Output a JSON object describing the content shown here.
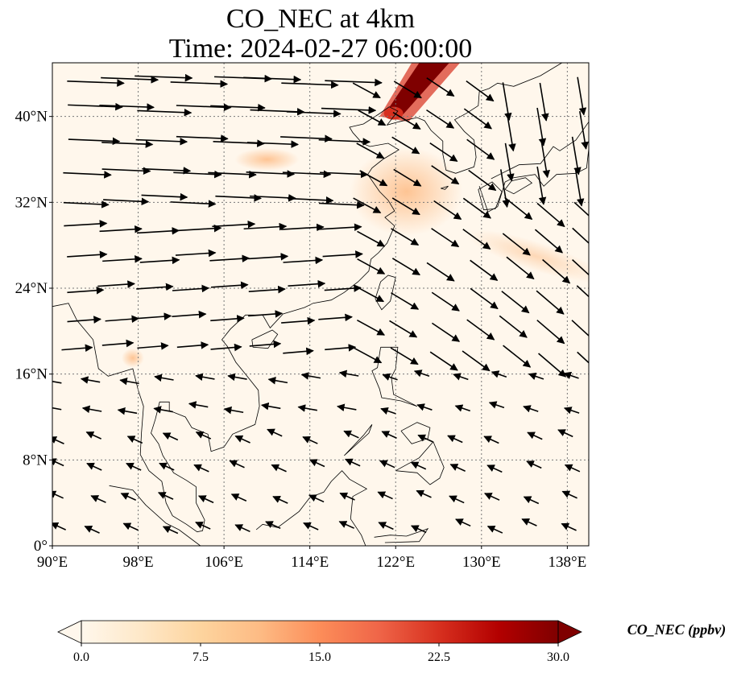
{
  "title": {
    "line1": "CO_NEC at 4km",
    "line2": "Time: 2024-02-27 06:00:00"
  },
  "map": {
    "lon_range": [
      90,
      140
    ],
    "lat_range": [
      0,
      45
    ],
    "lon_ticks": [
      {
        "value": 90,
        "label": "90°E"
      },
      {
        "value": 98,
        "label": "98°E"
      },
      {
        "value": 106,
        "label": "106°E"
      },
      {
        "value": 114,
        "label": "114°E"
      },
      {
        "value": 122,
        "label": "122°E"
      },
      {
        "value": 130,
        "label": "130°E"
      },
      {
        "value": 138,
        "label": "138°E"
      }
    ],
    "lat_ticks": [
      {
        "value": 0,
        "label": "0°"
      },
      {
        "value": 8,
        "label": "8°N"
      },
      {
        "value": 16,
        "label": "16°N"
      },
      {
        "value": 24,
        "label": "24°N"
      },
      {
        "value": 32,
        "label": "32°N"
      },
      {
        "value": 40,
        "label": "40°N"
      }
    ],
    "gridlines": true,
    "background_color": "#fff7ec",
    "coast_color": "#000000",
    "plume_colors": {
      "high": "#7f0000",
      "mid": "#d7301f",
      "low": "#fdbb84",
      "faint": "#fdd49e"
    },
    "arrow_color": "#000000"
  },
  "colorbar": {
    "min": 0,
    "max": 30,
    "extend": "both",
    "ticks": [
      {
        "value": 0,
        "label": "0.0"
      },
      {
        "value": 7.5,
        "label": "7.5"
      },
      {
        "value": 15,
        "label": "15.0"
      },
      {
        "value": 22.5,
        "label": "22.5"
      },
      {
        "value": 30,
        "label": "30.0"
      }
    ],
    "label": "CO_NEC (ppbv)",
    "colors": [
      "#fff7ec",
      "#fee8c8",
      "#fdd49e",
      "#fdbb84",
      "#fc8d59",
      "#ef6548",
      "#d7301f",
      "#b30000",
      "#7f0000"
    ]
  }
}
